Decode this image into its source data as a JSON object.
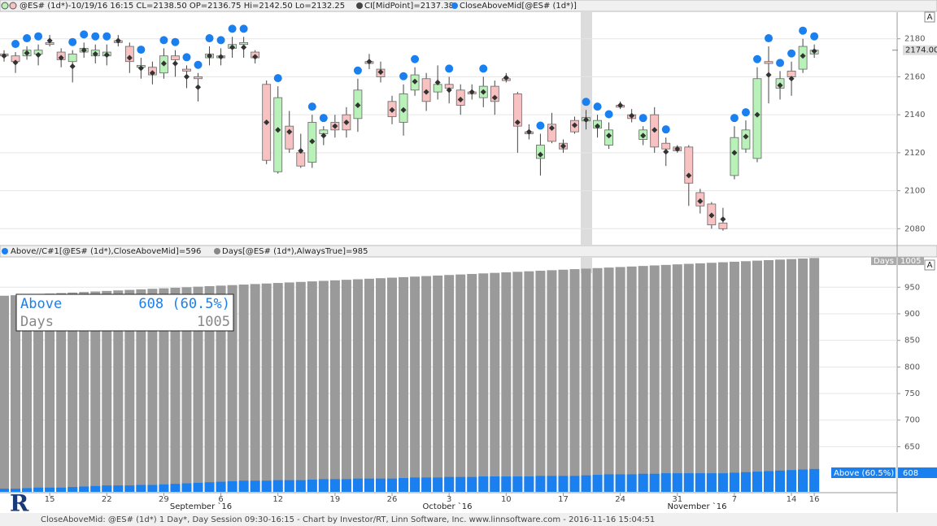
{
  "header": {
    "symbol_info": "@ES# (1d*)-10/19/16 16:15 CL=2138.50 OP=2136.75 Hi=2142.50 Lo=2132.25",
    "midpoint": "CI[MidPoint]=2137.38",
    "indicator": "CloseAboveMid[@ES# (1d*)]",
    "lower_above": "Above//C#1[@ES# (1d*),CloseAboveMid]=596",
    "lower_days": "Days[@ES# (1d*),AlwaysTrue]=985",
    "button": "A"
  },
  "months": [
    "September `16",
    "October `16",
    "November `16"
  ],
  "footer": "CloseAboveMid: @ES# (1d*) 1 Day*, Day Session 09:30-16:15 - Chart by Investor/RT, Linn Software, Inc. www.linnsoftware.com - 2016-11-16 15:04:51",
  "logo": "R",
  "chart_data": [
    {
      "type": "candlestick",
      "categories": [
        null,
        null,
        null,
        null,
        "15",
        null,
        null,
        null,
        null,
        "22",
        null,
        null,
        null,
        null,
        "29",
        null,
        null,
        null,
        null,
        "6",
        null,
        null,
        null,
        null,
        "12",
        null,
        null,
        null,
        null,
        "19",
        null,
        null,
        null,
        null,
        "26",
        null,
        null,
        null,
        null,
        "3",
        null,
        null,
        null,
        null,
        "10",
        null,
        null,
        null,
        null,
        "17",
        null,
        null,
        null,
        null,
        "24",
        null,
        null,
        null,
        null,
        "31",
        null,
        null,
        null,
        null,
        "7",
        null,
        null,
        null,
        null,
        "14",
        null,
        "16"
      ],
      "open": [
        2172,
        2171,
        2171,
        2172,
        2178,
        2173,
        2168,
        2173,
        2171,
        2171,
        2179,
        2176,
        2165,
        2165,
        2162,
        2171,
        2164,
        2160,
        2170,
        2170,
        2175,
        2177,
        2173,
        2156,
        2110,
        2134,
        2120,
        2115,
        2130,
        2136,
        2140,
        2138,
        2168,
        2164,
        2147,
        2136,
        2153,
        2159,
        2152,
        2156,
        2153,
        2152,
        2149,
        2155,
        2159,
        2151,
        2131,
        2117,
        2135,
        2125,
        2137,
        2136.75,
        2133,
        2124,
        2145,
        2140,
        2127,
        2140,
        2125,
        2123,
        2123,
        2099,
        2093,
        2083,
        2108,
        2122,
        2117,
        2168,
        2154,
        2163,
        2164,
        2172
      ],
      "high": [
        2174,
        2173,
        2176,
        2177,
        2182,
        2175,
        2174,
        2178,
        2177,
        2177,
        2182,
        2178,
        2170,
        2168,
        2175,
        2174,
        2166,
        2162,
        2176,
        2175,
        2181,
        2181,
        2174,
        2158,
        2155,
        2142,
        2130,
        2140,
        2134,
        2140,
        2144,
        2159,
        2172,
        2168,
        2150,
        2156,
        2165,
        2162,
        2166,
        2160,
        2156,
        2156,
        2160,
        2158,
        2162,
        2152,
        2135,
        2130,
        2141,
        2127,
        2139,
        2142.5,
        2140,
        2136,
        2147,
        2143,
        2134,
        2144,
        2128,
        2124,
        2124,
        2101,
        2094,
        2091,
        2134,
        2137,
        2165,
        2176,
        2163,
        2168,
        2180,
        2177
      ],
      "low": [
        2168,
        2162,
        2169,
        2166,
        2176,
        2165,
        2157,
        2170,
        2167,
        2166,
        2176,
        2162,
        2159,
        2156,
        2159,
        2160,
        2154,
        2147,
        2166,
        2166,
        2170,
        2170,
        2167,
        2114,
        2109,
        2120,
        2112,
        2112,
        2124,
        2128,
        2128,
        2131,
        2164,
        2157,
        2135,
        2129,
        2150,
        2142,
        2148,
        2146,
        2140,
        2148,
        2144,
        2140,
        2157,
        2120,
        2127,
        2108,
        2125,
        2120,
        2130,
        2132.25,
        2128,
        2122,
        2143,
        2136,
        2124,
        2120,
        2113,
        2120,
        2092,
        2088,
        2080,
        2079,
        2106,
        2120,
        2115,
        2146,
        2148,
        2150,
        2162,
        2170
      ],
      "close": [
        2171,
        2168,
        2174,
        2174,
        2177,
        2169,
        2172,
        2175,
        2174,
        2173,
        2178,
        2168,
        2166,
        2161,
        2171,
        2169,
        2163,
        2159,
        2172,
        2171,
        2177,
        2178,
        2170,
        2116,
        2149,
        2122,
        2113,
        2136,
        2132,
        2132,
        2132,
        2153,
        2167,
        2160,
        2139,
        2151,
        2161,
        2147,
        2156,
        2154,
        2145,
        2151,
        2155,
        2147,
        2158,
        2134,
        2130,
        2124,
        2126,
        2122,
        2131,
        2138.5,
        2137,
        2132,
        2144,
        2138,
        2132,
        2123,
        2122,
        2121,
        2104,
        2092,
        2082,
        2080,
        2128,
        2132,
        2159,
        2167,
        2159,
        2160,
        2176,
        2174
      ],
      "last_label": "2174.00",
      "up_color": "#b9f2b9",
      "down_color": "#f8c2c2",
      "signal_color": "#1a80f0",
      "ylim": [
        2072,
        2194
      ],
      "yticks": [
        2080,
        2100,
        2120,
        2140,
        2160,
        2180
      ],
      "grid": true
    },
    {
      "type": "bar",
      "series": [
        {
          "name": "Days",
          "color": "#9a9a9a",
          "values": [
            934,
            935,
            936,
            937,
            938,
            939,
            940,
            941,
            942,
            943,
            944,
            945,
            946,
            947,
            948,
            949,
            950,
            951,
            952,
            953,
            954,
            955,
            956,
            957,
            958,
            959,
            960,
            961,
            962,
            963,
            964,
            965,
            966,
            967,
            968,
            969,
            970,
            971,
            972,
            973,
            974,
            975,
            976,
            977,
            978,
            979,
            980,
            981,
            982,
            983,
            984,
            985,
            986,
            987,
            988,
            989,
            990,
            991,
            992,
            993,
            994,
            995,
            996,
            997,
            998,
            999,
            1000,
            1001,
            1002,
            1003,
            1004,
            1005
          ]
        },
        {
          "name": "Above",
          "color": "#1a80f0",
          "values": [
            571,
            571,
            572,
            573,
            573,
            573,
            574,
            575,
            576,
            577,
            577,
            577,
            578,
            578,
            579,
            580,
            581,
            582,
            583,
            584,
            585,
            586,
            586,
            586,
            587,
            587,
            587,
            588,
            589,
            589,
            589,
            590,
            590,
            590,
            590,
            591,
            592,
            592,
            592,
            593,
            593,
            593,
            594,
            594,
            594,
            594,
            594,
            595,
            595,
            595,
            595,
            596,
            597,
            598,
            598,
            598,
            599,
            599,
            600,
            600,
            600,
            600,
            600,
            600,
            601,
            602,
            603,
            604,
            605,
            606,
            607,
            608
          ]
        }
      ],
      "box_label": "608 (60.5%)",
      "axis_label": "Above (60.5%)",
      "ylim": [
        565,
        1004
      ],
      "yticks": [
        650,
        700,
        750,
        800,
        850,
        900,
        950
      ],
      "grid": true
    }
  ]
}
